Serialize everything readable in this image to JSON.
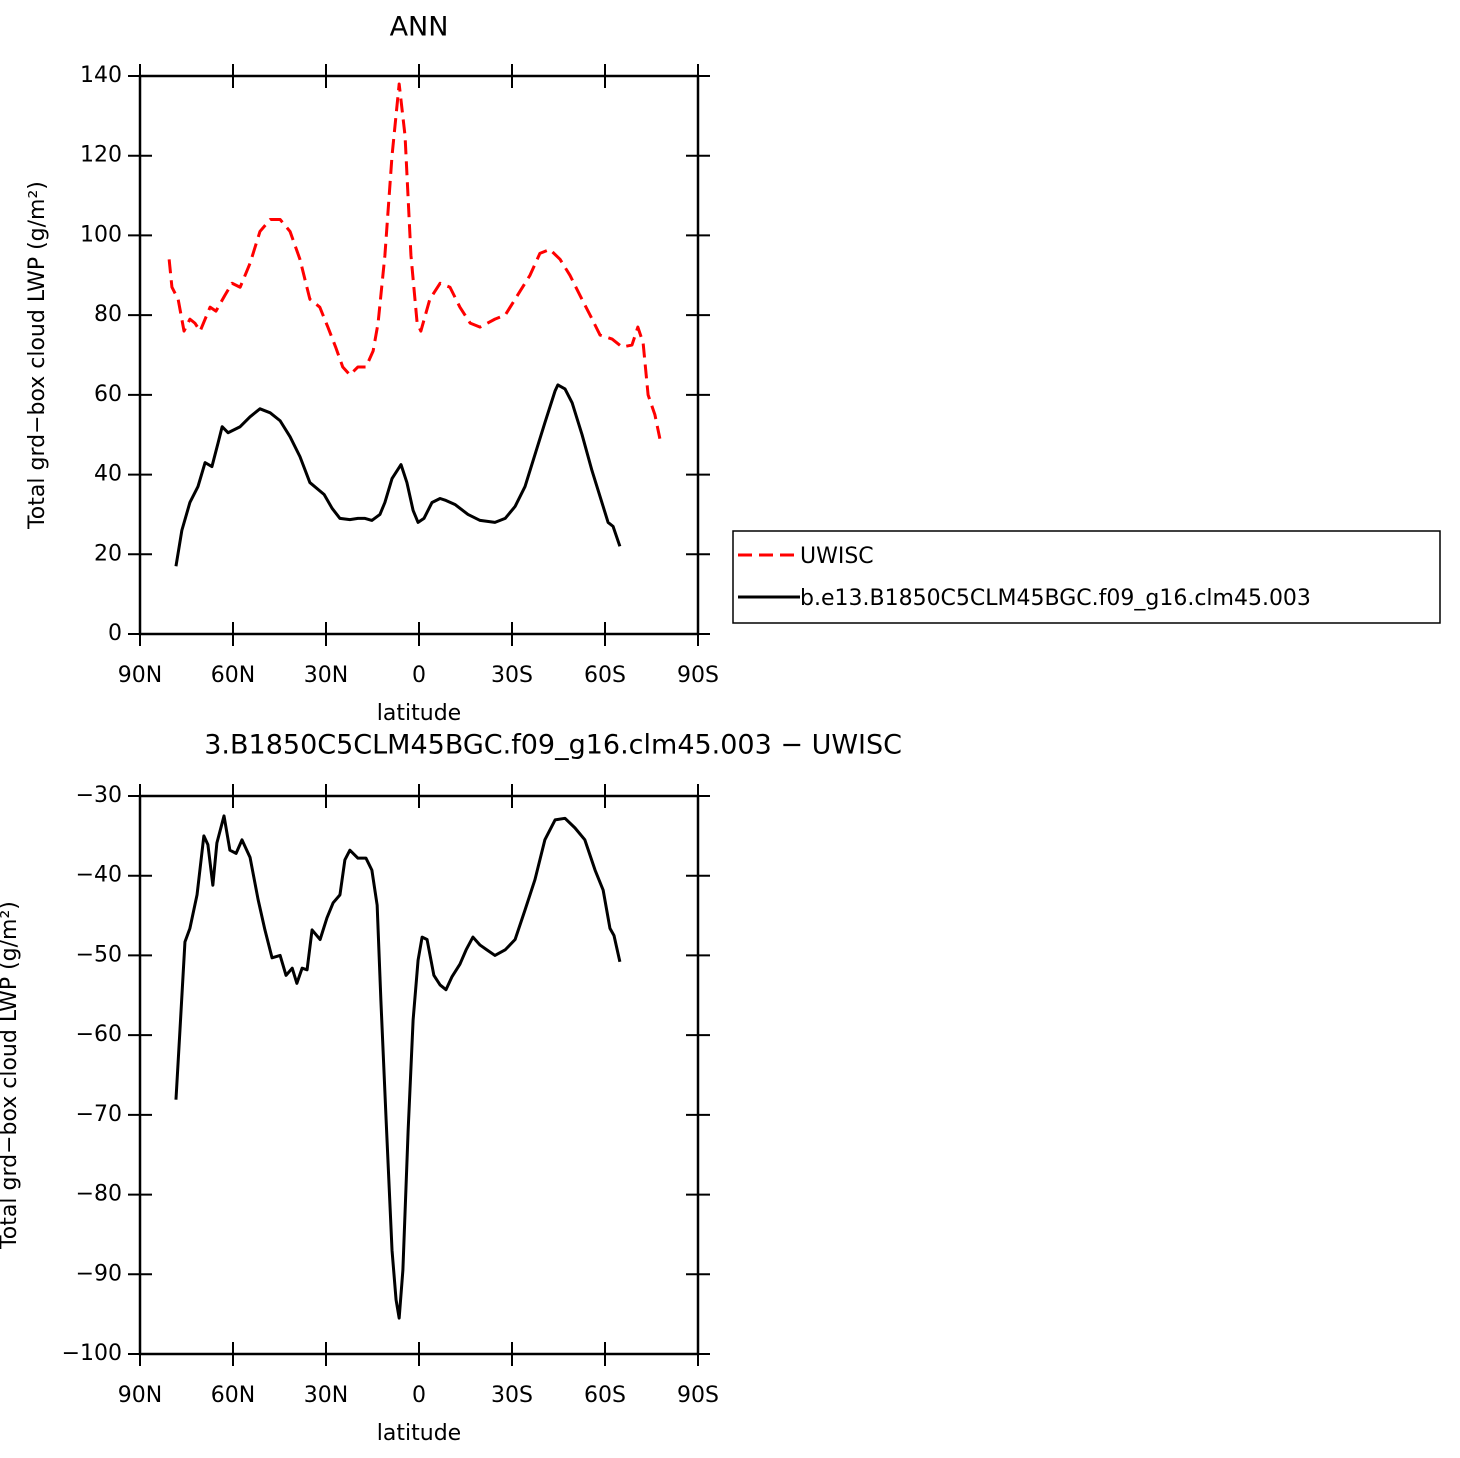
{
  "chart_data": [
    {
      "type": "line",
      "title": "ANN",
      "xlabel": "latitude",
      "ylabel": "Total grd−box cloud LWP (g/m²)",
      "xlim": [
        90,
        -90
      ],
      "xticks": [
        {
          "value": 90,
          "label": "90N"
        },
        {
          "value": 60,
          "label": "60N"
        },
        {
          "value": 30,
          "label": "30N"
        },
        0,
        {
          "value": -30,
          "label": "30S"
        },
        {
          "value": -60,
          "label": "60S"
        },
        {
          "value": -90,
          "label": "90S"
        }
      ],
      "ylim": [
        0,
        140
      ],
      "yticks": [
        0,
        20,
        40,
        60,
        80,
        100,
        120,
        140
      ],
      "legend": "right",
      "series": [
        {
          "name": "UWISC",
          "color": "#ff0000",
          "dash": "dashed",
          "x": [
            80.6,
            79.7,
            77.7,
            75.8,
            73.9,
            72.3,
            70.6,
            67.4,
            65.5,
            62.6,
            60.3,
            57.7,
            54.5,
            51.3,
            48,
            44.8,
            41.6,
            38.4,
            35.2,
            32,
            29.4,
            26.9,
            24.6,
            22.3,
            19.7,
            17.1,
            14.8,
            13.2,
            11,
            8.7,
            6.4,
            4.5,
            2.6,
            0.6,
            -0.6,
            -3.5,
            -6.8,
            -10,
            -13.2,
            -16.5,
            -19.7,
            -24.5,
            -27.8,
            -32.6,
            -35.8,
            -39,
            -42.2,
            -45.5,
            -48.7,
            -51.9,
            -55.2,
            -58.4,
            -62.3,
            -65.5,
            -68.7,
            -70.6,
            -72.3,
            -73.9,
            -76.1,
            -77.7
          ],
          "values": [
            94,
            87,
            84,
            76,
            79,
            78,
            76,
            82,
            81,
            85,
            88,
            87,
            93,
            101,
            104,
            104,
            101,
            94,
            84,
            82,
            77,
            72,
            67,
            65,
            67,
            67,
            71,
            78,
            95,
            120,
            138,
            125,
            95,
            78,
            76,
            84,
            88,
            87,
            82,
            78,
            77,
            79,
            80,
            86,
            90,
            95.5,
            96.5,
            94,
            90,
            85,
            80,
            75,
            74,
            72,
            72.5,
            77,
            73,
            60,
            55,
            49
          ]
        },
        {
          "name": "b.e13.B1850C5CLM45BGC.f09_g16.clm45.003",
          "color": "#000000",
          "dash": "solid",
          "x": [
            78.4,
            76.5,
            73.9,
            71.3,
            69,
            66.8,
            64.8,
            63.5,
            61.6,
            57.7,
            54.5,
            51.3,
            48,
            44.8,
            41.6,
            38.4,
            35.2,
            30.6,
            28,
            25.5,
            22.3,
            19.7,
            17.4,
            15.2,
            12.6,
            11,
            8.7,
            5.8,
            3.9,
            1.9,
            0.3,
            -1.6,
            -4.2,
            -6.8,
            -8.7,
            -11.6,
            -15.8,
            -19.7,
            -24.5,
            -27.8,
            -31,
            -34.2,
            -37.4,
            -40.6,
            -43.9,
            -44.8,
            -47.1,
            -49.4,
            -52.6,
            -55.8,
            -59.4,
            -61,
            -62.6,
            -64.8
          ],
          "values": [
            17,
            26,
            33,
            37,
            43,
            42,
            48,
            52,
            50.5,
            52,
            54.5,
            56.5,
            55.5,
            53.5,
            49.5,
            44.5,
            38,
            35,
            31.5,
            29,
            28.7,
            29,
            29,
            28.5,
            30,
            33,
            39,
            42.5,
            38,
            31,
            28,
            29,
            33,
            34,
            33.5,
            32.5,
            30,
            28.5,
            28,
            29,
            32,
            37,
            45,
            53,
            61,
            62.5,
            61.5,
            58,
            50,
            41,
            32,
            28,
            27,
            22
          ]
        }
      ]
    },
    {
      "type": "line",
      "title": "3.B1850C5CLM45BGC.f09_g16.clm45.003 − UWISC",
      "xlabel": "latitude",
      "ylabel": "Total grd−box cloud LWP (g/m²)",
      "xlim": [
        90,
        -90
      ],
      "xticks": [
        {
          "value": 90,
          "label": "90N"
        },
        {
          "value": 60,
          "label": "60N"
        },
        {
          "value": 30,
          "label": "30N"
        },
        0,
        {
          "value": -30,
          "label": "30S"
        },
        {
          "value": -60,
          "label": "60S"
        },
        {
          "value": -90,
          "label": "90S"
        }
      ],
      "ylim": [
        -100,
        -30
      ],
      "yticks": [
        {
          "value": -100,
          "label": "−100"
        },
        {
          "value": -90,
          "label": "−90"
        },
        {
          "value": -80,
          "label": "−80"
        },
        {
          "value": -70,
          "label": "−70"
        },
        {
          "value": -60,
          "label": "−60"
        },
        {
          "value": -50,
          "label": "−50"
        },
        {
          "value": -40,
          "label": "−40"
        },
        {
          "value": -30,
          "label": "−30"
        }
      ],
      "series": [
        {
          "color": "#000000",
          "dash": "solid",
          "x": [
            78.4,
            77.1,
            75.5,
            73.9,
            71.6,
            69.4,
            68.1,
            66.5,
            65.2,
            62.9,
            61,
            59,
            57.1,
            54.5,
            51.9,
            49.7,
            47.4,
            44.8,
            42.9,
            40.9,
            39.4,
            37.7,
            36.1,
            34.5,
            31.9,
            29.7,
            27.7,
            25.5,
            23.9,
            22.3,
            19.7,
            17.1,
            15.2,
            13.5,
            12.3,
            10.6,
            8.7,
            7.4,
            6.4,
            5.2,
            3.5,
            1.9,
            0.3,
            -1,
            -2.6,
            -4.8,
            -6.8,
            -8.7,
            -10.6,
            -13.2,
            -15.2,
            -17.4,
            -19.7,
            -21.9,
            -24.5,
            -27.8,
            -31,
            -34.2,
            -37.4,
            -40.6,
            -43.9,
            -47.1,
            -50.3,
            -53.5,
            -56.8,
            -59.4,
            -61.6,
            -62.9,
            -64.8
          ],
          "values": [
            -68.1,
            -59.3,
            -48.3,
            -46.6,
            -42.4,
            -35,
            -36.1,
            -41.2,
            -35.9,
            -32.5,
            -36.8,
            -37.2,
            -35.5,
            -37.7,
            -43,
            -46.8,
            -50.3,
            -50,
            -52.5,
            -51.6,
            -53.5,
            -51.6,
            -51.8,
            -46.8,
            -48,
            -45.3,
            -43.4,
            -42.4,
            -38,
            -36.8,
            -37.8,
            -37.8,
            -39.3,
            -43.7,
            -55.6,
            -70.7,
            -87,
            -93.2,
            -95.5,
            -89.5,
            -71.9,
            -58.1,
            -50.6,
            -47.7,
            -48,
            -52.5,
            -53.7,
            -54.3,
            -52.7,
            -51.1,
            -49.3,
            -47.7,
            -48.7,
            -49.3,
            -50,
            -49.3,
            -48,
            -44.3,
            -40.5,
            -35.5,
            -33,
            -32.8,
            -34,
            -35.5,
            -39.3,
            -41.8,
            -46.6,
            -47.5,
            -50.8
          ]
        }
      ]
    }
  ]
}
